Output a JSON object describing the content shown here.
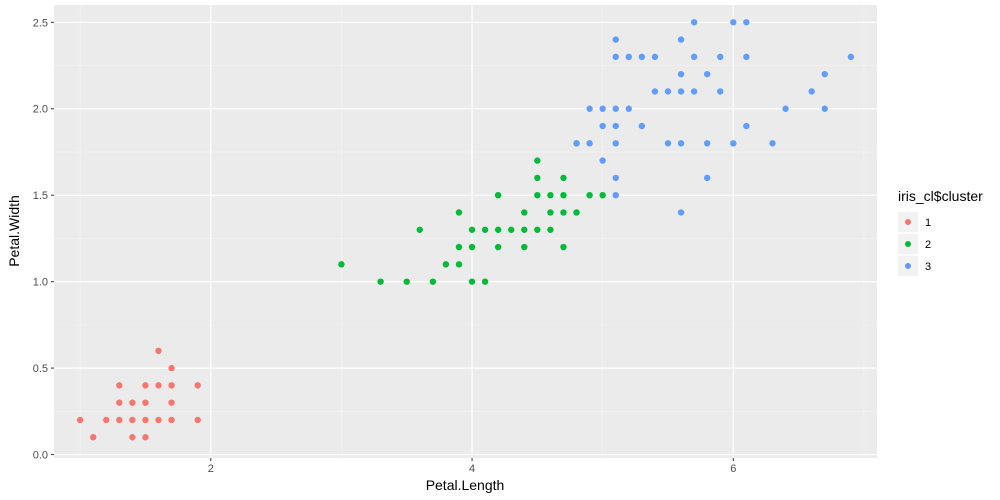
{
  "colors": {
    "panel_bg": "#EBEBEB",
    "grid_major": "#FFFFFF",
    "grid_minor": "#F5F5F5",
    "cluster_1": "#F8766D",
    "cluster_2": "#00BA38",
    "cluster_3": "#619CFF",
    "legend_key_bg": "#F2F2F2"
  },
  "chart_data": {
    "type": "scatter",
    "xlabel": "Petal.Length",
    "ylabel": "Petal.Width",
    "xlim": [
      0.8,
      7.1
    ],
    "ylim": [
      -0.02,
      2.6
    ],
    "x_ticks": [
      2,
      4,
      6
    ],
    "x_tick_labels": [
      "2",
      "4",
      "6"
    ],
    "y_ticks": [
      0.0,
      0.5,
      1.0,
      1.5,
      2.0,
      2.5
    ],
    "y_tick_labels": [
      "0.0",
      "0.5",
      "1.0",
      "1.5",
      "2.0",
      "2.5"
    ],
    "grid": true,
    "legend": {
      "title": "iris_cl$cluster",
      "placement": "right",
      "entries": [
        "1",
        "2",
        "3"
      ]
    },
    "series": [
      {
        "name": "1",
        "color": "#F8766D",
        "points": [
          [
            1.0,
            0.2
          ],
          [
            1.1,
            0.1
          ],
          [
            1.2,
            0.2
          ],
          [
            1.3,
            0.2
          ],
          [
            1.3,
            0.3
          ],
          [
            1.3,
            0.4
          ],
          [
            1.4,
            0.1
          ],
          [
            1.4,
            0.2
          ],
          [
            1.4,
            0.3
          ],
          [
            1.5,
            0.1
          ],
          [
            1.5,
            0.2
          ],
          [
            1.5,
            0.3
          ],
          [
            1.5,
            0.4
          ],
          [
            1.6,
            0.2
          ],
          [
            1.6,
            0.4
          ],
          [
            1.6,
            0.6
          ],
          [
            1.7,
            0.2
          ],
          [
            1.7,
            0.3
          ],
          [
            1.7,
            0.4
          ],
          [
            1.7,
            0.5
          ],
          [
            1.9,
            0.2
          ],
          [
            1.9,
            0.4
          ]
        ]
      },
      {
        "name": "2",
        "color": "#00BA38",
        "points": [
          [
            3.0,
            1.1
          ],
          [
            3.3,
            1.0
          ],
          [
            3.5,
            1.0
          ],
          [
            3.6,
            1.3
          ],
          [
            3.7,
            1.0
          ],
          [
            3.8,
            1.1
          ],
          [
            3.9,
            1.1
          ],
          [
            3.9,
            1.2
          ],
          [
            3.9,
            1.4
          ],
          [
            4.0,
            1.0
          ],
          [
            4.0,
            1.2
          ],
          [
            4.0,
            1.3
          ],
          [
            4.1,
            1.0
          ],
          [
            4.1,
            1.3
          ],
          [
            4.2,
            1.2
          ],
          [
            4.2,
            1.3
          ],
          [
            4.2,
            1.5
          ],
          [
            4.3,
            1.3
          ],
          [
            4.4,
            1.2
          ],
          [
            4.4,
            1.3
          ],
          [
            4.4,
            1.4
          ],
          [
            4.5,
            1.3
          ],
          [
            4.5,
            1.5
          ],
          [
            4.5,
            1.6
          ],
          [
            4.5,
            1.7
          ],
          [
            4.6,
            1.3
          ],
          [
            4.6,
            1.4
          ],
          [
            4.6,
            1.5
          ],
          [
            4.7,
            1.2
          ],
          [
            4.7,
            1.4
          ],
          [
            4.7,
            1.5
          ],
          [
            4.7,
            1.6
          ],
          [
            4.8,
            1.4
          ],
          [
            4.8,
            1.8
          ],
          [
            4.9,
            1.5
          ],
          [
            5.0,
            1.5
          ]
        ]
      },
      {
        "name": "3",
        "color": "#619CFF",
        "points": [
          [
            4.8,
            1.8
          ],
          [
            4.9,
            1.8
          ],
          [
            4.9,
            2.0
          ],
          [
            5.0,
            1.7
          ],
          [
            5.0,
            1.9
          ],
          [
            5.0,
            2.0
          ],
          [
            5.1,
            1.5
          ],
          [
            5.1,
            1.6
          ],
          [
            5.1,
            1.8
          ],
          [
            5.1,
            1.9
          ],
          [
            5.1,
            2.0
          ],
          [
            5.1,
            2.3
          ],
          [
            5.1,
            2.4
          ],
          [
            5.2,
            2.0
          ],
          [
            5.2,
            2.3
          ],
          [
            5.3,
            1.9
          ],
          [
            5.3,
            2.3
          ],
          [
            5.4,
            2.1
          ],
          [
            5.4,
            2.3
          ],
          [
            5.5,
            1.8
          ],
          [
            5.5,
            2.1
          ],
          [
            5.6,
            1.4
          ],
          [
            5.6,
            1.8
          ],
          [
            5.6,
            2.1
          ],
          [
            5.6,
            2.2
          ],
          [
            5.6,
            2.4
          ],
          [
            5.7,
            2.1
          ],
          [
            5.7,
            2.3
          ],
          [
            5.7,
            2.5
          ],
          [
            5.8,
            1.6
          ],
          [
            5.8,
            1.8
          ],
          [
            5.8,
            2.2
          ],
          [
            5.9,
            2.1
          ],
          [
            5.9,
            2.3
          ],
          [
            6.0,
            1.8
          ],
          [
            6.0,
            2.5
          ],
          [
            6.1,
            1.9
          ],
          [
            6.1,
            2.3
          ],
          [
            6.1,
            2.5
          ],
          [
            6.3,
            1.8
          ],
          [
            6.4,
            2.0
          ],
          [
            6.6,
            2.1
          ],
          [
            6.7,
            2.0
          ],
          [
            6.7,
            2.2
          ],
          [
            6.9,
            2.3
          ]
        ]
      }
    ]
  }
}
